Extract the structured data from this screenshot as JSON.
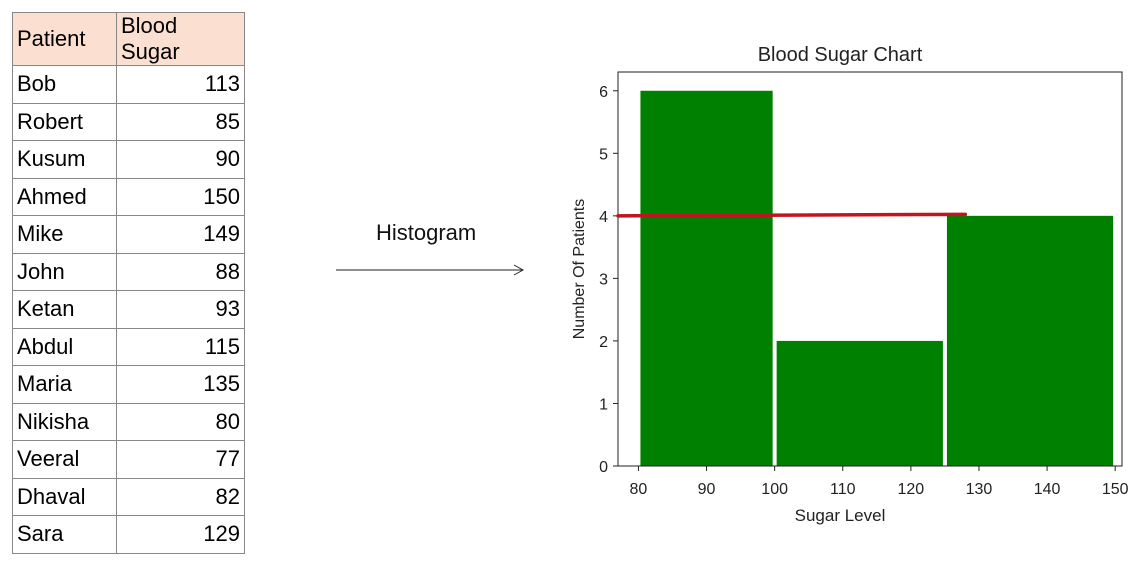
{
  "table": {
    "headers": [
      "Patient",
      "Blood Sugar"
    ],
    "rows": [
      [
        "Bob",
        "113"
      ],
      [
        "Robert",
        "85"
      ],
      [
        "Kusum",
        "90"
      ],
      [
        "Ahmed",
        "150"
      ],
      [
        "Mike",
        "149"
      ],
      [
        "John",
        "88"
      ],
      [
        "Ketan",
        "93"
      ],
      [
        "Abdul",
        "115"
      ],
      [
        "Maria",
        "135"
      ],
      [
        "Nikisha",
        "80"
      ],
      [
        "Veeral",
        "77"
      ],
      [
        "Dhaval",
        "82"
      ],
      [
        "Sara",
        "129"
      ]
    ],
    "header_color": "#fbe0d1"
  },
  "arrow": {
    "label": "Histogram"
  },
  "chart_data": {
    "type": "bar",
    "title": "Blood Sugar Chart",
    "xlabel": "Sugar Level",
    "ylabel": "Number Of Patients",
    "bins": [
      {
        "start": 80,
        "end": 100,
        "count": 6
      },
      {
        "start": 100,
        "end": 125,
        "count": 2
      },
      {
        "start": 125,
        "end": 150,
        "count": 4
      }
    ],
    "xlim": [
      77,
      151
    ],
    "ylim": [
      0,
      6.3
    ],
    "xticks": [
      80,
      90,
      100,
      110,
      120,
      130,
      140,
      150
    ],
    "yticks": [
      0,
      1,
      2,
      3,
      4,
      5,
      6
    ],
    "bar_color": "#008000",
    "annotation_line": {
      "y": 4,
      "x_start": 77,
      "x_end": 128,
      "color": "#c0141e"
    }
  }
}
